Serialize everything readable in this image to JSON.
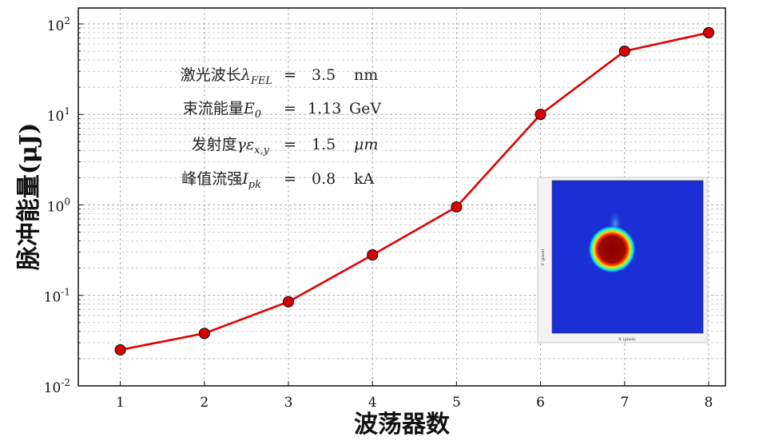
{
  "chart_data": {
    "type": "line",
    "xlabel": "波荡器数",
    "ylabel": "脉冲能量(μJ)",
    "y_scale": "log",
    "ylim": [
      0.01,
      150
    ],
    "xlim": [
      0.5,
      8.2
    ],
    "grid": true,
    "x_ticks": [
      "1",
      "2",
      "3",
      "4",
      "5",
      "6",
      "7",
      "8"
    ],
    "y_ticks": [
      {
        "base": "10",
        "exp": "-2",
        "value": 0.01
      },
      {
        "base": "10",
        "exp": "-1",
        "value": 0.1
      },
      {
        "base": "10",
        "exp": "0",
        "value": 1
      },
      {
        "base": "10",
        "exp": "1",
        "value": 10
      },
      {
        "base": "10",
        "exp": "2",
        "value": 100
      }
    ],
    "series": [
      {
        "color": "#e00000",
        "marker_color": "#dd0000",
        "x": [
          1,
          2,
          3,
          4,
          5,
          6,
          7,
          8
        ],
        "values": [
          0.025,
          0.038,
          0.085,
          0.28,
          0.95,
          10,
          50,
          80
        ]
      }
    ],
    "annotations": [
      {
        "name": "激光波长",
        "symbol": "λ",
        "sub": "FEL",
        "eq": "=",
        "value": "3.5",
        "unit": "nm"
      },
      {
        "name": "束流能量",
        "symbol": "E",
        "sub": "0",
        "eq": "=",
        "value": "1.13",
        "unit": "GeV"
      },
      {
        "name": "发射度",
        "symbol": "γε",
        "sub": "x,y",
        "eq": "=",
        "value": "1.5",
        "unit": "μm"
      },
      {
        "name": "峰值流强",
        "symbol": "I",
        "sub": "pk",
        "eq": "=",
        "value": "0.8",
        "unit": "kA"
      }
    ],
    "inset": {
      "type": "heatmap",
      "xlabel": "X (pixel)",
      "ylabel": "Y (pixel)",
      "background": "#1a2fd6"
    }
  }
}
